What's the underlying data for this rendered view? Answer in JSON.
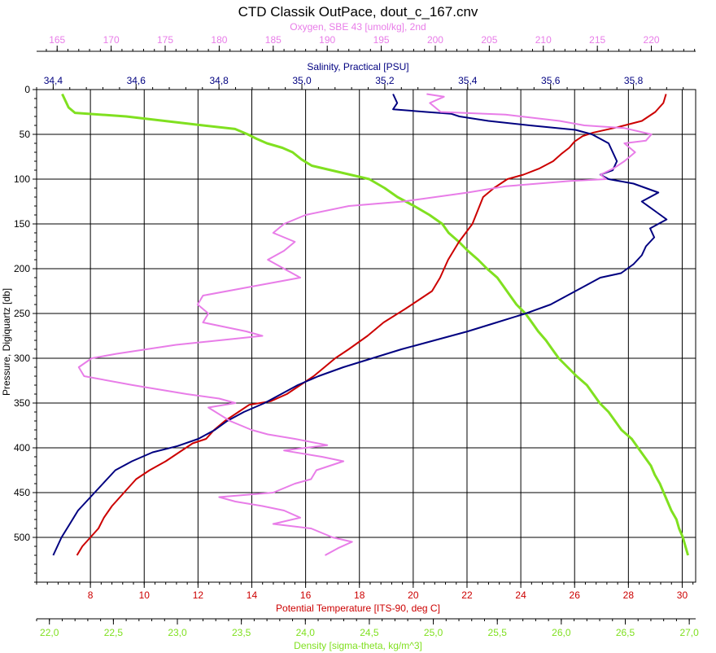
{
  "chart_data": {
    "type": "line",
    "title": "CTD Classik OutPace, dout_c_167.cnv",
    "y_axis": {
      "label": "Pressure, Digiquartz [db]",
      "range": [
        0,
        550
      ],
      "inverted": true,
      "ticks": [
        0,
        50,
        100,
        150,
        200,
        250,
        300,
        350,
        400,
        450,
        500
      ],
      "tick_labels": [
        "0",
        "50",
        "100",
        "150",
        "200",
        "250",
        "300",
        "350",
        "400",
        "450",
        "500"
      ],
      "grid": true
    },
    "x_axes": [
      {
        "id": "oxygen",
        "label": "Oxygen, SBE 43 [umol/kg], 2nd",
        "position": "top",
        "color": "#e87de8",
        "range": [
          163.1,
          224.1
        ],
        "ticks": [
          165,
          170,
          175,
          180,
          185,
          190,
          195,
          200,
          205,
          210,
          215,
          220
        ],
        "tick_labels": [
          "165",
          "170",
          "175",
          "180",
          "185",
          "190",
          "195",
          "200",
          "205",
          "210",
          "215",
          "220"
        ]
      },
      {
        "id": "salinity",
        "label": "Salinity, Practical [PSU]",
        "position": "top",
        "color": "#000080",
        "range": [
          34.36,
          35.95
        ],
        "ticks": [
          34.4,
          34.6,
          34.8,
          35.0,
          35.2,
          35.4,
          35.6,
          35.8
        ],
        "tick_labels": [
          "34,4",
          "34,6",
          "34,8",
          "35,0",
          "35,2",
          "35,4",
          "35,6",
          "35,8"
        ]
      },
      {
        "id": "temperature",
        "label": "Potential Temperature [ITS-90, deg C]",
        "position": "bottom",
        "color": "#cc0000",
        "range": [
          6.0,
          30.5
        ],
        "ticks": [
          8,
          10,
          12,
          14,
          16,
          18,
          20,
          22,
          24,
          26,
          28,
          30
        ],
        "tick_labels": [
          "8",
          "10",
          "12",
          "14",
          "16",
          "18",
          "20",
          "22",
          "24",
          "26",
          "28",
          "30"
        ],
        "grid": true
      },
      {
        "id": "density",
        "label": "Density [sigma-theta, kg/m^3]",
        "position": "bottom",
        "color": "#80e020",
        "range": [
          21.9,
          27.05
        ],
        "ticks": [
          22.0,
          22.5,
          23.0,
          23.5,
          24.0,
          24.5,
          25.0,
          25.5,
          26.0,
          26.5,
          27.0
        ],
        "tick_labels": [
          "22,0",
          "22,5",
          "23,0",
          "23,5",
          "24,0",
          "24,5",
          "25,0",
          "25,5",
          "26,0",
          "26,5",
          "27,0"
        ]
      }
    ],
    "series": [
      {
        "axis": "density",
        "color": "#80e020",
        "points": [
          [
            22.1,
            5
          ],
          [
            22.15,
            20
          ],
          [
            22.2,
            26
          ],
          [
            22.6,
            30
          ],
          [
            22.9,
            35
          ],
          [
            23.2,
            40
          ],
          [
            23.45,
            44
          ],
          [
            23.55,
            50
          ],
          [
            23.62,
            55
          ],
          [
            23.7,
            60
          ],
          [
            23.82,
            65
          ],
          [
            23.9,
            70
          ],
          [
            23.97,
            78
          ],
          [
            24.05,
            85
          ],
          [
            24.2,
            90
          ],
          [
            24.35,
            95
          ],
          [
            24.5,
            100
          ],
          [
            24.62,
            110
          ],
          [
            24.72,
            120
          ],
          [
            24.85,
            130
          ],
          [
            24.97,
            140
          ],
          [
            25.07,
            150
          ],
          [
            25.12,
            160
          ],
          [
            25.2,
            170
          ],
          [
            25.27,
            180
          ],
          [
            25.35,
            190
          ],
          [
            25.42,
            200
          ],
          [
            25.5,
            210
          ],
          [
            25.55,
            220
          ],
          [
            25.6,
            230
          ],
          [
            25.65,
            240
          ],
          [
            25.72,
            250
          ],
          [
            25.77,
            260
          ],
          [
            25.82,
            270
          ],
          [
            25.88,
            280
          ],
          [
            25.93,
            290
          ],
          [
            25.98,
            300
          ],
          [
            26.05,
            310
          ],
          [
            26.12,
            320
          ],
          [
            26.2,
            330
          ],
          [
            26.25,
            340
          ],
          [
            26.3,
            350
          ],
          [
            26.37,
            360
          ],
          [
            26.42,
            370
          ],
          [
            26.47,
            380
          ],
          [
            26.55,
            390
          ],
          [
            26.6,
            400
          ],
          [
            26.65,
            410
          ],
          [
            26.7,
            420
          ],
          [
            26.73,
            430
          ],
          [
            26.77,
            440
          ],
          [
            26.8,
            450
          ],
          [
            26.83,
            460
          ],
          [
            26.86,
            470
          ],
          [
            26.9,
            480
          ],
          [
            26.92,
            490
          ],
          [
            26.95,
            500
          ],
          [
            26.97,
            510
          ],
          [
            26.99,
            520
          ]
        ]
      },
      {
        "axis": "temperature",
        "color": "#cc0000",
        "points": [
          [
            29.4,
            5
          ],
          [
            29.3,
            15
          ],
          [
            29.0,
            25
          ],
          [
            28.5,
            35
          ],
          [
            27.6,
            42
          ],
          [
            26.7,
            48
          ],
          [
            26.3,
            52
          ],
          [
            26.0,
            58
          ],
          [
            25.8,
            65
          ],
          [
            25.5,
            72
          ],
          [
            25.2,
            80
          ],
          [
            24.7,
            88
          ],
          [
            24.1,
            95
          ],
          [
            23.5,
            100
          ],
          [
            23.0,
            110
          ],
          [
            22.6,
            120
          ],
          [
            22.4,
            135
          ],
          [
            22.2,
            150
          ],
          [
            21.7,
            170
          ],
          [
            21.3,
            190
          ],
          [
            21.0,
            210
          ],
          [
            20.7,
            225
          ],
          [
            20.2,
            235
          ],
          [
            19.7,
            245
          ],
          [
            18.9,
            260
          ],
          [
            18.3,
            275
          ],
          [
            17.6,
            290
          ],
          [
            17.1,
            300
          ],
          [
            16.7,
            310
          ],
          [
            16.3,
            320
          ],
          [
            15.8,
            330
          ],
          [
            15.3,
            340
          ],
          [
            14.7,
            348
          ],
          [
            13.9,
            352
          ],
          [
            13.5,
            360
          ],
          [
            13.0,
            370
          ],
          [
            12.6,
            380
          ],
          [
            12.3,
            390
          ],
          [
            11.8,
            395
          ],
          [
            11.3,
            405
          ],
          [
            10.8,
            415
          ],
          [
            10.2,
            425
          ],
          [
            9.7,
            435
          ],
          [
            9.4,
            445
          ],
          [
            9.1,
            455
          ],
          [
            8.8,
            465
          ],
          [
            8.5,
            478
          ],
          [
            8.3,
            490
          ],
          [
            8.0,
            500
          ],
          [
            7.7,
            510
          ],
          [
            7.5,
            520
          ]
        ]
      },
      {
        "axis": "salinity",
        "color": "#000080",
        "points": [
          [
            35.22,
            5
          ],
          [
            35.23,
            15
          ],
          [
            35.22,
            22
          ],
          [
            35.3,
            25
          ],
          [
            35.36,
            27
          ],
          [
            35.38,
            30
          ],
          [
            35.45,
            35
          ],
          [
            35.55,
            40
          ],
          [
            35.66,
            45
          ],
          [
            35.7,
            50
          ],
          [
            35.74,
            60
          ],
          [
            35.75,
            70
          ],
          [
            35.76,
            80
          ],
          [
            35.75,
            90
          ],
          [
            35.72,
            95
          ],
          [
            35.74,
            100
          ],
          [
            35.8,
            105
          ],
          [
            35.83,
            110
          ],
          [
            35.86,
            115
          ],
          [
            35.82,
            125
          ],
          [
            35.85,
            135
          ],
          [
            35.88,
            145
          ],
          [
            35.84,
            155
          ],
          [
            35.85,
            165
          ],
          [
            35.83,
            175
          ],
          [
            35.82,
            185
          ],
          [
            35.8,
            195
          ],
          [
            35.77,
            205
          ],
          [
            35.72,
            210
          ],
          [
            35.68,
            220
          ],
          [
            35.64,
            230
          ],
          [
            35.6,
            240
          ],
          [
            35.54,
            250
          ],
          [
            35.47,
            260
          ],
          [
            35.4,
            270
          ],
          [
            35.32,
            280
          ],
          [
            35.24,
            290
          ],
          [
            35.17,
            300
          ],
          [
            35.1,
            310
          ],
          [
            35.04,
            320
          ],
          [
            34.99,
            330
          ],
          [
            34.95,
            340
          ],
          [
            34.91,
            350
          ],
          [
            34.86,
            360
          ],
          [
            34.82,
            370
          ],
          [
            34.79,
            380
          ],
          [
            34.75,
            390
          ],
          [
            34.7,
            398
          ],
          [
            34.64,
            405
          ],
          [
            34.59,
            415
          ],
          [
            34.55,
            425
          ],
          [
            34.52,
            440
          ],
          [
            34.49,
            455
          ],
          [
            34.46,
            470
          ],
          [
            34.44,
            485
          ],
          [
            34.42,
            500
          ],
          [
            34.41,
            510
          ],
          [
            34.4,
            520
          ]
        ]
      },
      {
        "axis": "oxygen",
        "color": "#e87de8",
        "points": [
          [
            199.2,
            5
          ],
          [
            200.8,
            8
          ],
          [
            199.5,
            15
          ],
          [
            200.5,
            25
          ],
          [
            206.5,
            28
          ],
          [
            211.5,
            35
          ],
          [
            213.8,
            40
          ],
          [
            217.5,
            43
          ],
          [
            220,
            50
          ],
          [
            219.5,
            57
          ],
          [
            217.5,
            60
          ],
          [
            218.5,
            70
          ],
          [
            217.5,
            80
          ],
          [
            216.5,
            88
          ],
          [
            215.3,
            95
          ],
          [
            215.8,
            100
          ],
          [
            212.5,
            102
          ],
          [
            206.5,
            108
          ],
          [
            203,
            115
          ],
          [
            197,
            125
          ],
          [
            192,
            130
          ],
          [
            188,
            140
          ],
          [
            186,
            150
          ],
          [
            185,
            160
          ],
          [
            187,
            170
          ],
          [
            186,
            180
          ],
          [
            184.5,
            190
          ],
          [
            186,
            200
          ],
          [
            187.5,
            210
          ],
          [
            183,
            220
          ],
          [
            178.5,
            230
          ],
          [
            178,
            240
          ],
          [
            179,
            250
          ],
          [
            178.5,
            260
          ],
          [
            182.5,
            270
          ],
          [
            184,
            275
          ],
          [
            176,
            285
          ],
          [
            170.5,
            295
          ],
          [
            168.2,
            300
          ],
          [
            167,
            310
          ],
          [
            167.5,
            320
          ],
          [
            172,
            330
          ],
          [
            177,
            340
          ],
          [
            180,
            345
          ],
          [
            181.5,
            350
          ],
          [
            179,
            355
          ],
          [
            181,
            370
          ],
          [
            183,
            380
          ],
          [
            184.5,
            385
          ],
          [
            187,
            390
          ],
          [
            190,
            397
          ],
          [
            186,
            403
          ],
          [
            189.5,
            410
          ],
          [
            191.5,
            415
          ],
          [
            189,
            425
          ],
          [
            188.5,
            435
          ],
          [
            187,
            440
          ],
          [
            185,
            450
          ],
          [
            180,
            455
          ],
          [
            181.5,
            460
          ],
          [
            184,
            465
          ],
          [
            186,
            470
          ],
          [
            187.5,
            478
          ],
          [
            185,
            485
          ],
          [
            188.5,
            490
          ],
          [
            190.5,
            500
          ],
          [
            192.3,
            505
          ],
          [
            191,
            512
          ],
          [
            189.8,
            520
          ]
        ]
      }
    ]
  }
}
